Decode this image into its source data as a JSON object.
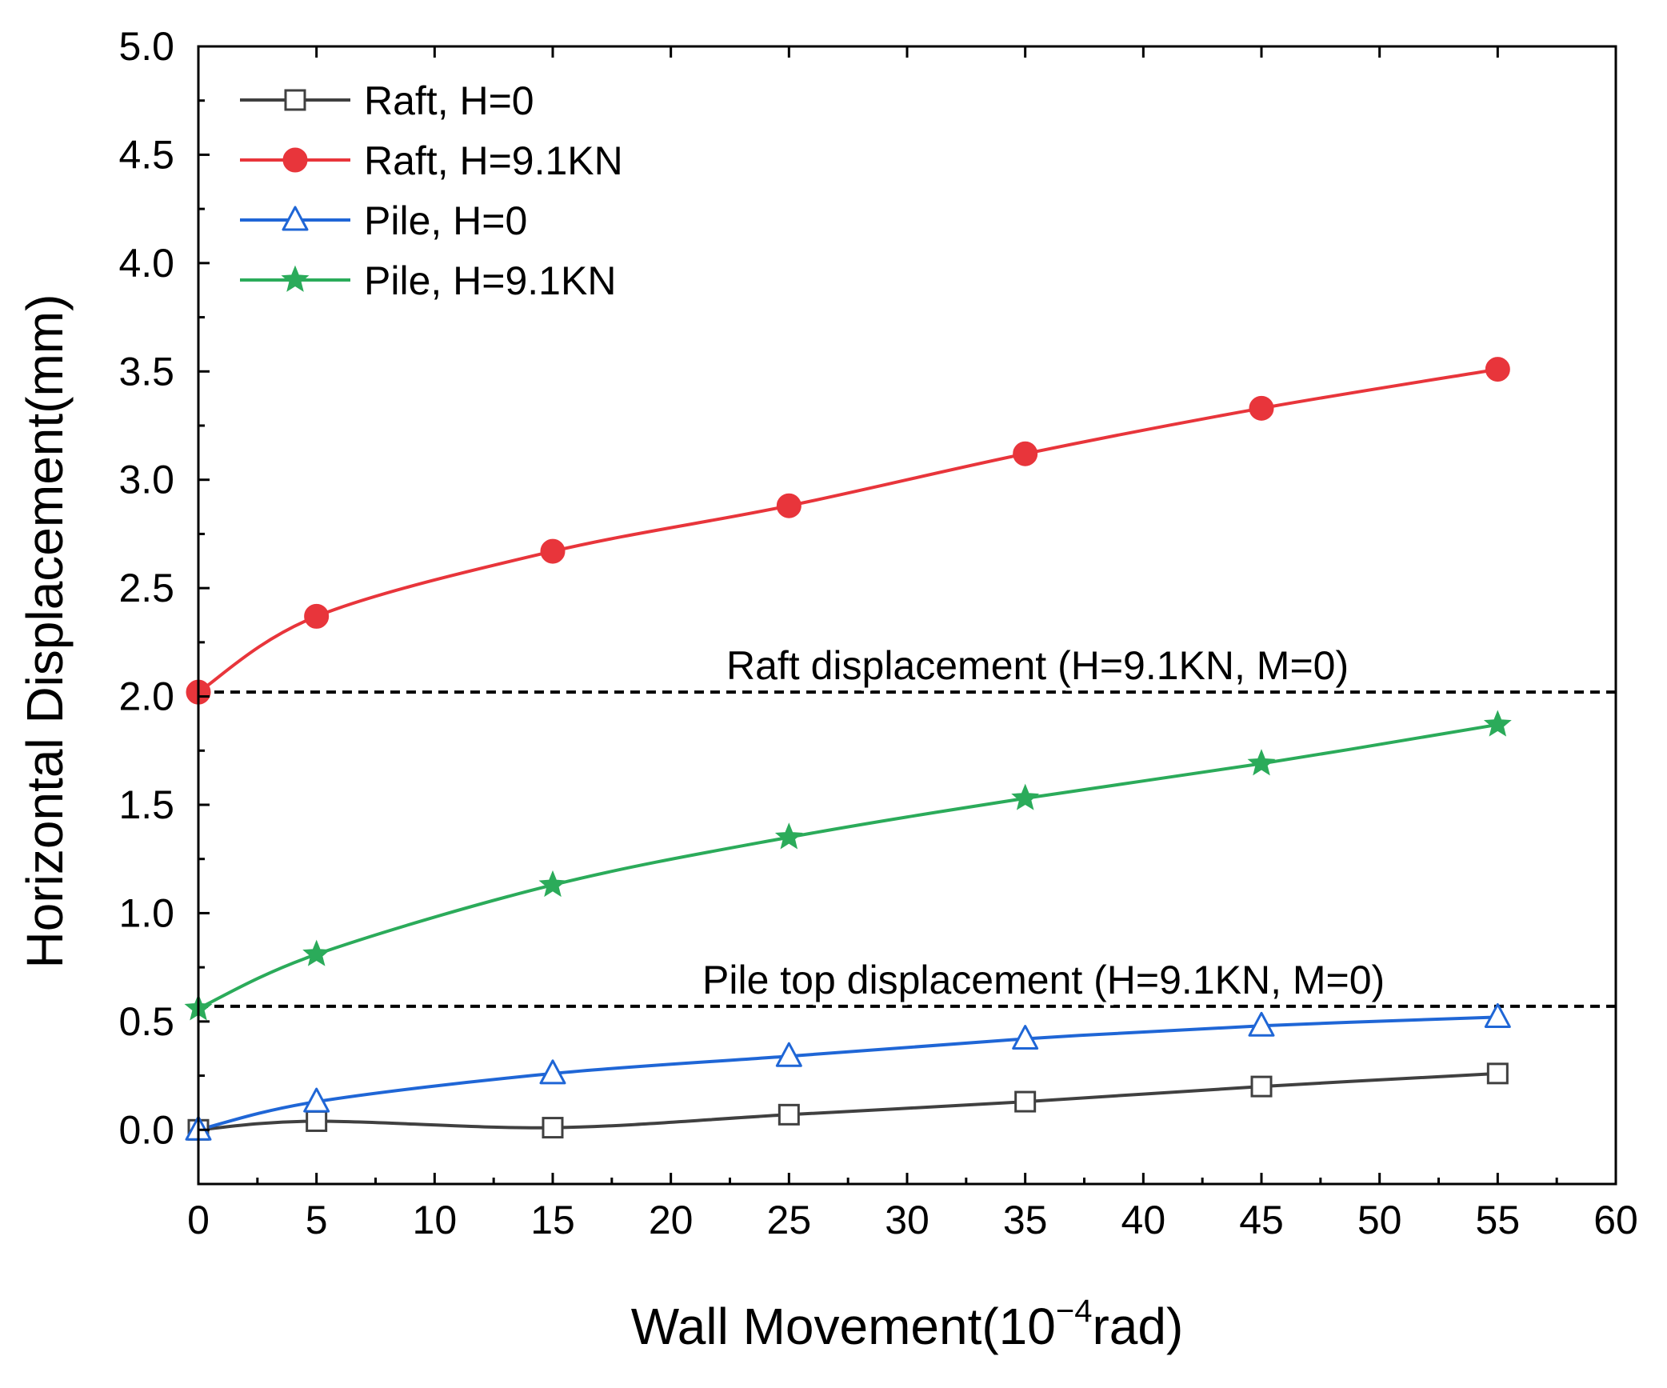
{
  "chart_data": {
    "type": "line",
    "xlabel": {
      "prefix": "Wall Movement(10",
      "sup": "−4",
      "suffix": "rad)"
    },
    "ylabel": "Horizontal Displacement(mm)",
    "xlim": [
      0,
      60
    ],
    "ylim": [
      -0.25,
      5.0
    ],
    "xticks": [
      0,
      5,
      10,
      15,
      20,
      25,
      30,
      35,
      40,
      45,
      50,
      55,
      60
    ],
    "yticks": [
      0.0,
      0.5,
      1.0,
      1.5,
      2.0,
      2.5,
      3.0,
      3.5,
      4.0,
      4.5,
      5.0
    ],
    "xtick_labels": [
      "0",
      "5",
      "10",
      "15",
      "20",
      "25",
      "30",
      "35",
      "40",
      "45",
      "50",
      "55",
      "60"
    ],
    "ytick_labels": [
      "0.0",
      "0.5",
      "1.0",
      "1.5",
      "2.0",
      "2.5",
      "3.0",
      "3.5",
      "4.0",
      "4.5",
      "5.0"
    ],
    "grid": false,
    "legend_position": "top-left",
    "x": [
      0,
      5,
      15,
      25,
      35,
      45,
      55
    ],
    "series": [
      {
        "name": "Raft, H=0",
        "color": "#404040",
        "marker": "square-open",
        "values": [
          0.0,
          0.04,
          0.01,
          0.07,
          0.13,
          0.2,
          0.26
        ]
      },
      {
        "name": "Raft, H=9.1KN",
        "color": "#e8353b",
        "marker": "circle-filled",
        "values": [
          2.02,
          2.37,
          2.67,
          2.88,
          3.12,
          3.33,
          3.51
        ]
      },
      {
        "name": "Pile, H=0",
        "color": "#1f66d6",
        "marker": "triangle-open",
        "values": [
          0.0,
          0.13,
          0.26,
          0.34,
          0.42,
          0.48,
          0.52
        ]
      },
      {
        "name": "Pile, H=9.1KN",
        "color": "#2bab5a",
        "marker": "star-filled",
        "values": [
          0.56,
          0.81,
          1.13,
          1.35,
          1.53,
          1.69,
          1.87
        ]
      }
    ],
    "reference_lines": [
      {
        "label": "Raft displacement (H=9.1KN, M=0)",
        "y": 2.02,
        "color": "#000000"
      },
      {
        "label": "Pile top displacement (H=9.1KN, M=0)",
        "y": 0.57,
        "color": "#000000"
      }
    ]
  }
}
